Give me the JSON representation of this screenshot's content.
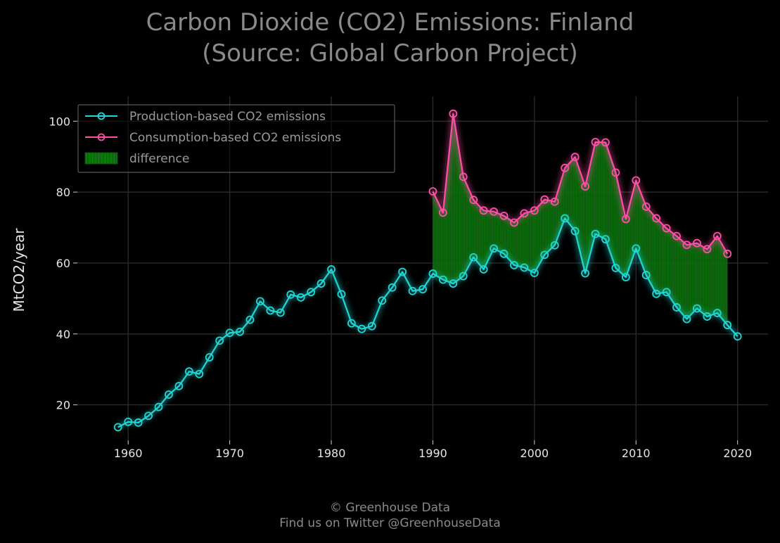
{
  "title": {
    "line1": "Carbon Dioxide (CO2) Emissions: Finland",
    "line2": "(Source: Global Carbon Project)"
  },
  "footer": {
    "line1": "© Greenhouse Data",
    "line2": "Find us on Twitter @GreenhouseData"
  },
  "colors": {
    "background": "#000000",
    "production": "#1ed8d8",
    "consumption": "#ff4fa8",
    "difference": "#0a7a0a",
    "grid": "#2a2a2a"
  },
  "chart_data": {
    "type": "line",
    "title": "Carbon Dioxide (CO2) Emissions: Finland (Source: Global Carbon Project)",
    "xlabel": "",
    "ylabel": "MtCO2/year",
    "xlim": [
      1955,
      2023
    ],
    "ylim": [
      10,
      107
    ],
    "xticks": [
      1960,
      1970,
      1980,
      1990,
      2000,
      2010,
      2020
    ],
    "yticks": [
      20,
      40,
      60,
      80,
      100
    ],
    "grid": true,
    "legend_position": "top-left",
    "series": [
      {
        "name": "Production-based CO2 emissions",
        "color": "#1ed8d8",
        "x": [
          1959,
          1960,
          1961,
          1962,
          1963,
          1964,
          1965,
          1966,
          1967,
          1968,
          1969,
          1970,
          1971,
          1972,
          1973,
          1974,
          1975,
          1976,
          1977,
          1978,
          1979,
          1980,
          1981,
          1982,
          1983,
          1984,
          1985,
          1986,
          1987,
          1988,
          1989,
          1990,
          1991,
          1992,
          1993,
          1994,
          1995,
          1996,
          1997,
          1998,
          1999,
          2000,
          2001,
          2002,
          2003,
          2004,
          2005,
          2006,
          2007,
          2008,
          2009,
          2010,
          2011,
          2012,
          2013,
          2014,
          2015,
          2016,
          2017,
          2018,
          2019,
          2020
        ],
        "values": [
          13.7,
          15.2,
          15.0,
          16.9,
          19.4,
          22.9,
          25.3,
          29.4,
          28.7,
          33.4,
          38.1,
          40.3,
          40.6,
          44.0,
          49.2,
          46.6,
          46.0,
          51.1,
          50.3,
          51.8,
          54.2,
          58.2,
          51.2,
          43.0,
          41.4,
          42.2,
          49.4,
          53.1,
          57.5,
          52.1,
          52.6,
          57.0,
          55.3,
          54.2,
          56.3,
          61.6,
          58.2,
          64.1,
          62.6,
          59.4,
          58.7,
          57.2,
          62.3,
          65.0,
          72.6,
          69.0,
          57.1,
          68.2,
          66.7,
          58.6,
          56.0,
          64.1,
          56.6,
          51.3,
          51.8,
          47.5,
          44.2,
          47.2,
          44.9,
          45.9,
          42.5,
          39.3
        ]
      },
      {
        "name": "Consumption-based CO2 emissions",
        "color": "#ff4fa8",
        "x": [
          1990,
          1991,
          1992,
          1993,
          1994,
          1995,
          1996,
          1997,
          1998,
          1999,
          2000,
          2001,
          2002,
          2003,
          2004,
          2005,
          2006,
          2007,
          2008,
          2009,
          2010,
          2011,
          2012,
          2013,
          2014,
          2015,
          2016,
          2017,
          2018,
          2019
        ],
        "values": [
          80.2,
          74.2,
          102.1,
          84.3,
          77.8,
          74.8,
          74.5,
          73.3,
          71.4,
          74.0,
          74.8,
          77.9,
          77.3,
          86.8,
          89.9,
          81.6,
          94.1,
          94.0,
          85.5,
          72.4,
          83.3,
          75.9,
          72.6,
          69.8,
          67.6,
          65.1,
          65.6,
          63.9,
          67.6,
          62.6
        ]
      }
    ],
    "fill_between": {
      "name": "difference",
      "color": "#0a7a0a",
      "from": 1990,
      "to": 2019
    }
  }
}
